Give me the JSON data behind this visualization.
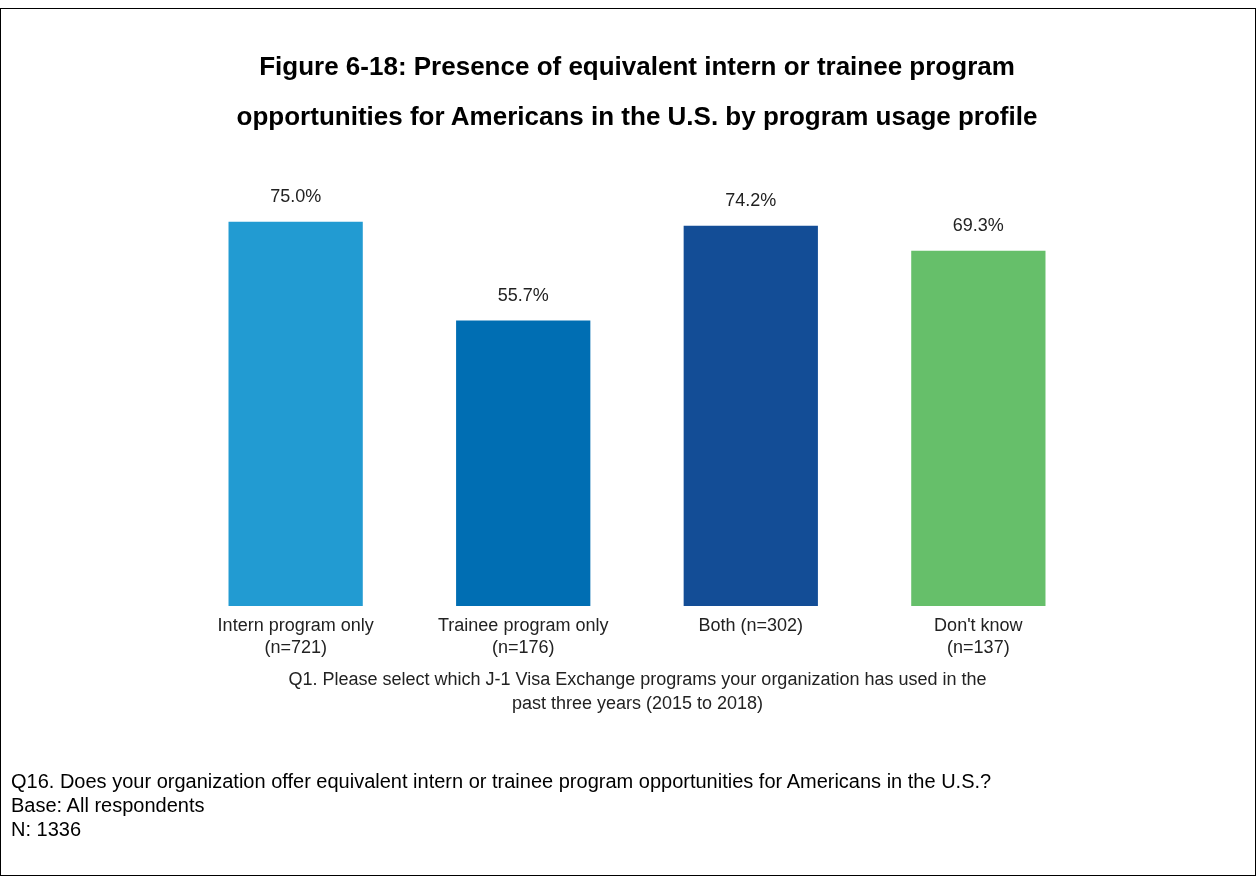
{
  "chart_data": {
    "type": "bar",
    "title": "Figure 6-18: Presence of equivalent intern or trainee program opportunities for Americans in the U.S. by program usage profile",
    "xlabel": "Q1. Please select which J-1 Visa Exchange programs your organization has used in the past three years (2015 to 2018)",
    "categories": [
      "Intern program only (n=721)",
      "Trainee program only (n=176)",
      "Both (n=302)",
      "Don't know (n=137)"
    ],
    "values": [
      75.0,
      55.7,
      74.2,
      69.3
    ],
    "value_labels": [
      "75.0%",
      "55.7%",
      "74.2%",
      "69.3%"
    ],
    "colors": [
      "#229bd2",
      "#006eb3",
      "#134d96",
      "#66bf6a"
    ],
    "annotations": [
      "Q16. Does your organization offer equivalent intern or trainee program opportunities for Americans in the U.S.?",
      "Base: All respondents",
      "N: 1336"
    ],
    "grid": false,
    "legend": false
  }
}
